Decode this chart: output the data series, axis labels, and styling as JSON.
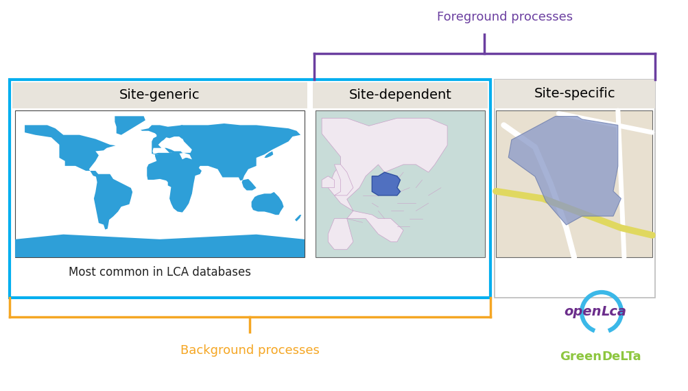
{
  "bg_color": "#ffffff",
  "box1_label": "Site-generic",
  "box2_label": "Site-dependent",
  "box3_label": "Site-specific",
  "box1_sublabel": "Most common in LCA databases",
  "foreground_label": "Foreground processes",
  "background_label": "Background processes",
  "foreground_color": "#6B3FA0",
  "orange_color": "#F5A623",
  "cyan_border": "#00AEEF",
  "header_bg": "#E8E4DC",
  "openlca_text_color": "#6B2D8B",
  "greendelta_color": "#8DC63F",
  "openlca_circle_color": "#3BB8E8",
  "world_map_color": "#2E9FD8",
  "world_map_ocean": "#FFFFFF",
  "europe_bg": "#C8DCD8",
  "europe_land": "#F5EEF5",
  "europe_lines": "#C8A0C8",
  "germany_color": "#5070C0",
  "germany_edge": "#3050A0",
  "site_bg": "#E8E0D0",
  "site_shape_color": "#8898C8",
  "site_road_yellow": "#E0D860",
  "site_road_white": "#FFFFFF"
}
